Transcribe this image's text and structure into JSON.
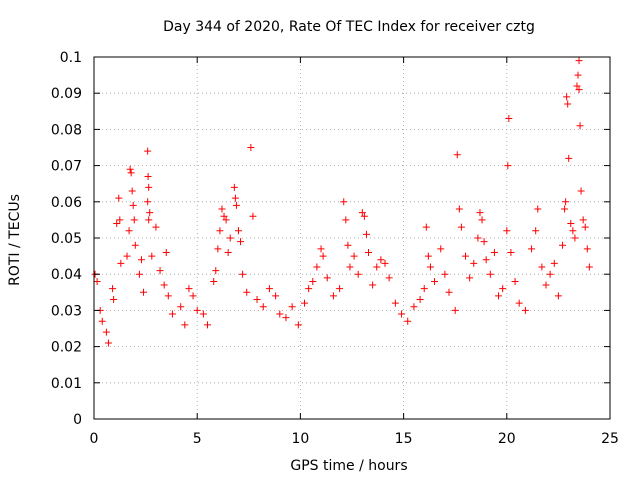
{
  "chart_data": {
    "type": "scatter",
    "title": "Day 344 of 2020, Rate Of TEC Index for receiver cztg",
    "xlabel": "GPS time / hours",
    "ylabel": "ROTI / TECUs",
    "xlim": [
      0,
      25
    ],
    "ylim": [
      0,
      0.1
    ],
    "xticks": [
      "0",
      "5",
      "10",
      "15",
      "20",
      "25"
    ],
    "yticks": [
      "0",
      "0.01",
      "0.02",
      "0.03",
      "0.04",
      "0.05",
      "0.06",
      "0.07",
      "0.08",
      "0.09",
      "0.1"
    ],
    "grid": true,
    "marker": "+",
    "color": "#ff0000",
    "series": [
      {
        "points": [
          [
            0.05,
            0.04
          ],
          [
            0.15,
            0.038
          ],
          [
            0.3,
            0.03
          ],
          [
            0.4,
            0.027
          ],
          [
            0.6,
            0.024
          ],
          [
            0.7,
            0.021
          ],
          [
            0.9,
            0.036
          ],
          [
            0.95,
            0.033
          ],
          [
            1.1,
            0.054
          ],
          [
            1.2,
            0.061
          ],
          [
            1.25,
            0.055
          ],
          [
            1.3,
            0.043
          ],
          [
            1.6,
            0.045
          ],
          [
            1.7,
            0.052
          ],
          [
            1.75,
            0.069
          ],
          [
            1.8,
            0.068
          ],
          [
            1.85,
            0.063
          ],
          [
            1.9,
            0.059
          ],
          [
            1.95,
            0.055
          ],
          [
            2.0,
            0.048
          ],
          [
            2.2,
            0.04
          ],
          [
            2.3,
            0.044
          ],
          [
            2.4,
            0.035
          ],
          [
            2.6,
            0.074
          ],
          [
            2.62,
            0.067
          ],
          [
            2.65,
            0.064
          ],
          [
            2.6,
            0.06
          ],
          [
            2.7,
            0.057
          ],
          [
            2.65,
            0.055
          ],
          [
            2.8,
            0.045
          ],
          [
            3.0,
            0.053
          ],
          [
            3.2,
            0.041
          ],
          [
            3.4,
            0.037
          ],
          [
            3.5,
            0.046
          ],
          [
            3.6,
            0.034
          ],
          [
            3.8,
            0.029
          ],
          [
            4.2,
            0.031
          ],
          [
            4.4,
            0.026
          ],
          [
            4.6,
            0.036
          ],
          [
            4.8,
            0.034
          ],
          [
            5.0,
            0.03
          ],
          [
            5.3,
            0.029
          ],
          [
            5.5,
            0.026
          ],
          [
            5.8,
            0.038
          ],
          [
            5.9,
            0.041
          ],
          [
            6.0,
            0.047
          ],
          [
            6.1,
            0.052
          ],
          [
            6.2,
            0.058
          ],
          [
            6.3,
            0.056
          ],
          [
            6.4,
            0.055
          ],
          [
            6.5,
            0.046
          ],
          [
            6.6,
            0.05
          ],
          [
            6.8,
            0.064
          ],
          [
            6.85,
            0.061
          ],
          [
            6.9,
            0.059
          ],
          [
            7.0,
            0.052
          ],
          [
            7.1,
            0.049
          ],
          [
            7.2,
            0.04
          ],
          [
            7.4,
            0.035
          ],
          [
            7.6,
            0.075
          ],
          [
            7.7,
            0.056
          ],
          [
            7.9,
            0.033
          ],
          [
            8.2,
            0.031
          ],
          [
            8.5,
            0.036
          ],
          [
            8.8,
            0.034
          ],
          [
            9.0,
            0.029
          ],
          [
            9.3,
            0.028
          ],
          [
            9.6,
            0.031
          ],
          [
            9.9,
            0.026
          ],
          [
            10.2,
            0.032
          ],
          [
            10.4,
            0.036
          ],
          [
            10.6,
            0.038
          ],
          [
            10.8,
            0.042
          ],
          [
            11.0,
            0.047
          ],
          [
            11.1,
            0.045
          ],
          [
            11.3,
            0.039
          ],
          [
            11.6,
            0.034
          ],
          [
            11.9,
            0.036
          ],
          [
            12.1,
            0.06
          ],
          [
            12.2,
            0.055
          ],
          [
            12.3,
            0.048
          ],
          [
            12.4,
            0.042
          ],
          [
            12.6,
            0.045
          ],
          [
            12.8,
            0.04
          ],
          [
            13.0,
            0.057
          ],
          [
            13.1,
            0.056
          ],
          [
            13.2,
            0.051
          ],
          [
            13.3,
            0.046
          ],
          [
            13.5,
            0.037
          ],
          [
            13.7,
            0.042
          ],
          [
            13.9,
            0.044
          ],
          [
            14.1,
            0.043
          ],
          [
            14.3,
            0.039
          ],
          [
            14.6,
            0.032
          ],
          [
            14.9,
            0.029
          ],
          [
            15.2,
            0.027
          ],
          [
            15.5,
            0.031
          ],
          [
            15.8,
            0.033
          ],
          [
            16.0,
            0.036
          ],
          [
            16.1,
            0.053
          ],
          [
            16.2,
            0.045
          ],
          [
            16.3,
            0.042
          ],
          [
            16.5,
            0.038
          ],
          [
            16.8,
            0.047
          ],
          [
            17.0,
            0.04
          ],
          [
            17.2,
            0.035
          ],
          [
            17.5,
            0.03
          ],
          [
            17.6,
            0.073
          ],
          [
            17.7,
            0.058
          ],
          [
            17.8,
            0.053
          ],
          [
            18.0,
            0.045
          ],
          [
            18.2,
            0.039
          ],
          [
            18.4,
            0.043
          ],
          [
            18.6,
            0.05
          ],
          [
            18.7,
            0.057
          ],
          [
            18.8,
            0.055
          ],
          [
            18.9,
            0.049
          ],
          [
            19.0,
            0.044
          ],
          [
            19.2,
            0.04
          ],
          [
            19.4,
            0.046
          ],
          [
            19.6,
            0.034
          ],
          [
            19.8,
            0.036
          ],
          [
            20.0,
            0.052
          ],
          [
            20.05,
            0.07
          ],
          [
            20.1,
            0.083
          ],
          [
            20.2,
            0.046
          ],
          [
            20.4,
            0.038
          ],
          [
            20.6,
            0.032
          ],
          [
            20.9,
            0.03
          ],
          [
            21.2,
            0.047
          ],
          [
            21.4,
            0.052
          ],
          [
            21.5,
            0.058
          ],
          [
            21.7,
            0.042
          ],
          [
            21.9,
            0.037
          ],
          [
            22.1,
            0.04
          ],
          [
            22.3,
            0.043
          ],
          [
            22.5,
            0.034
          ],
          [
            22.7,
            0.048
          ],
          [
            22.8,
            0.058
          ],
          [
            22.85,
            0.06
          ],
          [
            22.9,
            0.089
          ],
          [
            22.95,
            0.087
          ],
          [
            23.0,
            0.072
          ],
          [
            23.1,
            0.054
          ],
          [
            23.2,
            0.052
          ],
          [
            23.3,
            0.05
          ],
          [
            23.4,
            0.092
          ],
          [
            23.45,
            0.095
          ],
          [
            23.5,
            0.099
          ],
          [
            23.5,
            0.091
          ],
          [
            23.55,
            0.081
          ],
          [
            23.6,
            0.063
          ],
          [
            23.7,
            0.055
          ],
          [
            23.8,
            0.053
          ],
          [
            23.9,
            0.047
          ],
          [
            24.0,
            0.042
          ]
        ]
      }
    ]
  }
}
